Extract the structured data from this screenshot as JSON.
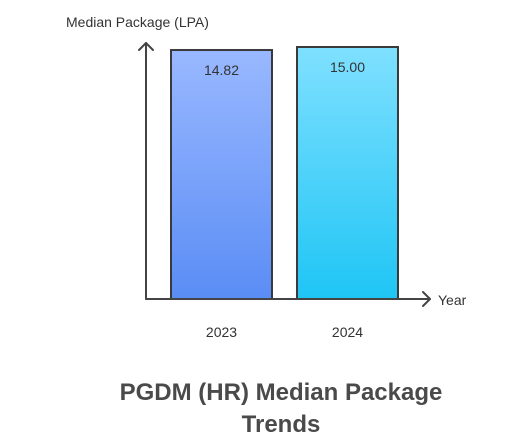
{
  "chart_data": {
    "type": "bar",
    "title": "PGDM (HR) Median Package Trends",
    "ylabel": "Median Package (LPA)",
    "xlabel": "Year",
    "categories": [
      "2023",
      "2024"
    ],
    "values": [
      14.82,
      15.0
    ],
    "value_labels": [
      "14.82",
      "15.00"
    ],
    "ylim": [
      0,
      15.0
    ],
    "grid": false,
    "colors": {
      "bar_2023": [
        "#99b8ff",
        "#5a8df5"
      ],
      "bar_2024": [
        "#7fe0ff",
        "#1fc5f5"
      ],
      "axis": "#444444"
    }
  }
}
